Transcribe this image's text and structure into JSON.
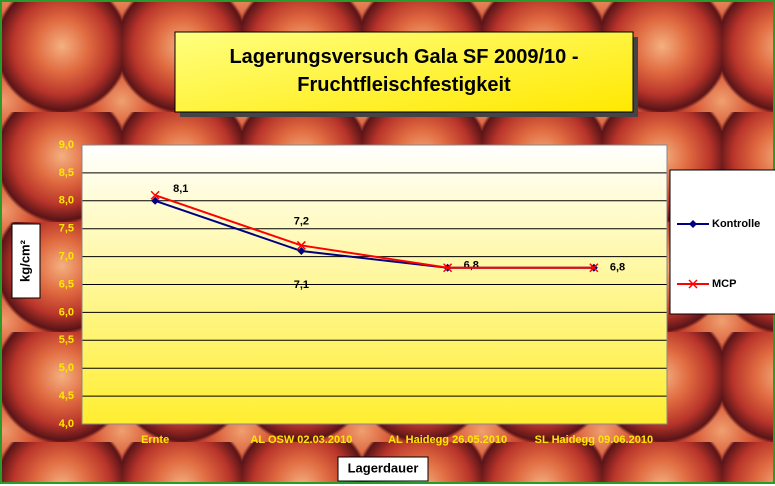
{
  "chart_data": {
    "type": "line",
    "title": "Lagerungsversuch Gala SF 2009/10 - Fruchtfleischfestigkeit",
    "x_label": "Lagerdauer",
    "y_label": "kg/cm²",
    "categories": [
      "Ernte",
      "AL OSW 02.03.2010",
      "AL Haidegg 26.05.2010",
      "SL Haidegg 09.06.2010"
    ],
    "series": [
      {
        "name": "Kontrolle",
        "color": "#000080",
        "values": [
          8.0,
          7.1,
          6.8,
          6.8
        ],
        "value_labels": [
          null,
          "7,1",
          "6,8",
          "6,8"
        ]
      },
      {
        "name": "MCP",
        "color": "#ff0000",
        "values": [
          8.1,
          7.2,
          6.8,
          6.8
        ],
        "value_labels": [
          "8,1",
          "7,2",
          null,
          null
        ]
      }
    ],
    "ylim": [
      4.0,
      9.0
    ],
    "yticks": [
      {
        "value": 4.0,
        "label": "4,0"
      },
      {
        "value": 4.5,
        "label": "4,5"
      },
      {
        "value": 5.0,
        "label": "5,0"
      },
      {
        "value": 5.5,
        "label": "5,5"
      },
      {
        "value": 6.0,
        "label": "6,0"
      },
      {
        "value": 6.5,
        "label": "6,5"
      },
      {
        "value": 7.0,
        "label": "7,0"
      },
      {
        "value": 7.5,
        "label": "7,5"
      },
      {
        "value": 8.0,
        "label": "8,0"
      },
      {
        "value": 8.5,
        "label": "8,5"
      },
      {
        "value": 9.0,
        "label": "9,0"
      }
    ],
    "grid": true,
    "legend": "right"
  }
}
